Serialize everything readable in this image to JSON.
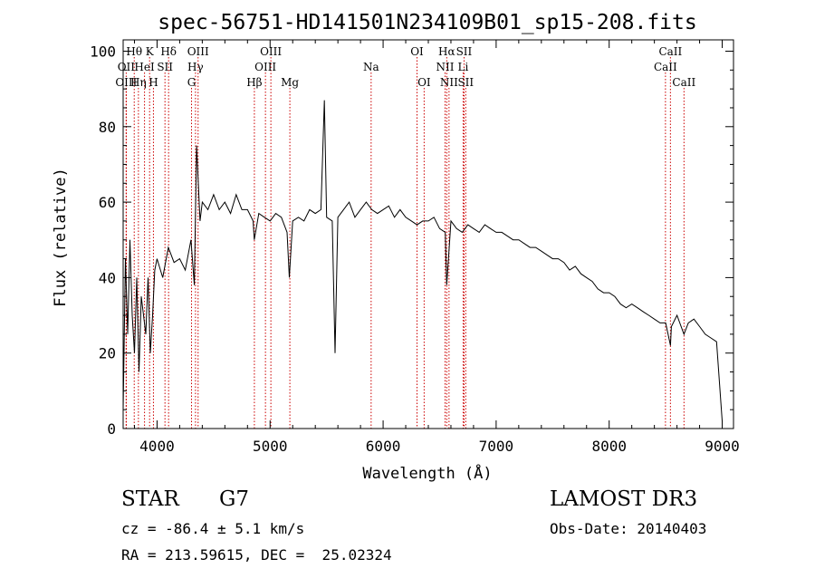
{
  "chart_data": {
    "type": "line",
    "title": "spec-56751-HD141501N234109B01_sp15-208.fits",
    "xlabel": "Wavelength (Å)",
    "ylabel": "Flux (relative)",
    "xlim": [
      3700,
      9100
    ],
    "ylim": [
      0,
      103
    ],
    "xticks": [
      4000,
      5000,
      6000,
      7000,
      8000,
      9000
    ],
    "xtick_labels": [
      "4000",
      "5000",
      "6000",
      "7000",
      "8000",
      "9000"
    ],
    "yticks": [
      0,
      20,
      40,
      60,
      80,
      100
    ],
    "ytick_labels": [
      "0",
      "20",
      "40",
      "60",
      "80",
      "100"
    ],
    "series": [
      {
        "name": "Spectrum",
        "x": [
          3700,
          3720,
          3740,
          3760,
          3780,
          3800,
          3820,
          3840,
          3860,
          3880,
          3900,
          3920,
          3940,
          3960,
          3980,
          4000,
          4050,
          4100,
          4150,
          4200,
          4250,
          4300,
          4330,
          4350,
          4380,
          4400,
          4450,
          4500,
          4550,
          4600,
          4650,
          4700,
          4750,
          4800,
          4850,
          4860,
          4900,
          4950,
          5000,
          5050,
          5100,
          5150,
          5170,
          5200,
          5250,
          5300,
          5350,
          5400,
          5450,
          5480,
          5500,
          5550,
          5575,
          5600,
          5650,
          5700,
          5750,
          5800,
          5850,
          5900,
          5950,
          6000,
          6050,
          6100,
          6150,
          6200,
          6250,
          6300,
          6350,
          6400,
          6450,
          6500,
          6550,
          6563,
          6600,
          6650,
          6700,
          6750,
          6800,
          6850,
          6900,
          6950,
          7000,
          7050,
          7100,
          7150,
          7200,
          7250,
          7300,
          7350,
          7400,
          7450,
          7500,
          7550,
          7600,
          7650,
          7700,
          7750,
          7800,
          7850,
          7900,
          7950,
          8000,
          8050,
          8100,
          8150,
          8200,
          8250,
          8300,
          8350,
          8400,
          8450,
          8500,
          8542,
          8550,
          8600,
          8662,
          8700,
          8750,
          8800,
          8850,
          8900,
          8950,
          9000
        ],
        "values": [
          5,
          45,
          25,
          50,
          30,
          20,
          40,
          15,
          35,
          30,
          25,
          40,
          20,
          30,
          42,
          45,
          40,
          48,
          44,
          45,
          42,
          50,
          38,
          75,
          55,
          60,
          58,
          62,
          58,
          60,
          57,
          62,
          58,
          58,
          55,
          50,
          57,
          56,
          55,
          57,
          56,
          52,
          40,
          55,
          56,
          55,
          58,
          57,
          58,
          87,
          56,
          55,
          20,
          56,
          58,
          60,
          56,
          58,
          60,
          58,
          57,
          58,
          59,
          56,
          58,
          56,
          55,
          54,
          55,
          55,
          56,
          53,
          52,
          38,
          55,
          53,
          52,
          54,
          53,
          52,
          54,
          53,
          52,
          52,
          51,
          50,
          50,
          49,
          48,
          48,
          47,
          46,
          45,
          45,
          44,
          42,
          43,
          41,
          40,
          39,
          37,
          36,
          36,
          35,
          33,
          32,
          33,
          32,
          31,
          30,
          29,
          28,
          28,
          22,
          27,
          30,
          25,
          28,
          29,
          27,
          25,
          24,
          23,
          2
        ]
      }
    ],
    "line_labels": [
      {
        "name": "OII",
        "x": 3727,
        "row": 1
      },
      {
        "name": "OIII",
        "x": 3727,
        "row": 2
      },
      {
        "name": "Hθ",
        "x": 3798,
        "row": 0
      },
      {
        "name": "Hη",
        "x": 3835,
        "row": 2
      },
      {
        "name": "HeI",
        "x": 3889,
        "row": 1
      },
      {
        "name": "K",
        "x": 3934,
        "row": 0
      },
      {
        "name": "H",
        "x": 3968,
        "row": 2
      },
      {
        "name": "SII",
        "x": 4070,
        "row": 1
      },
      {
        "name": "Hδ",
        "x": 4102,
        "row": 0
      },
      {
        "name": "G",
        "x": 4305,
        "row": 2
      },
      {
        "name": "Hγ",
        "x": 4340,
        "row": 1
      },
      {
        "name": "OIII",
        "x": 4363,
        "row": 0
      },
      {
        "name": "Hβ",
        "x": 4861,
        "row": 2
      },
      {
        "name": "OIII",
        "x": 4959,
        "row": 1
      },
      {
        "name": "OIII",
        "x": 5007,
        "row": 0
      },
      {
        "name": "Mg",
        "x": 5175,
        "row": 2
      },
      {
        "name": "Na",
        "x": 5894,
        "row": 1
      },
      {
        "name": "OI",
        "x": 6300,
        "row": 0
      },
      {
        "name": "OI",
        "x": 6363,
        "row": 2
      },
      {
        "name": "NII",
        "x": 6548,
        "row": 1
      },
      {
        "name": "Hα",
        "x": 6563,
        "row": 0
      },
      {
        "name": "NII",
        "x": 6583,
        "row": 2
      },
      {
        "name": "Li",
        "x": 6708,
        "row": 1
      },
      {
        "name": "SII",
        "x": 6716,
        "row": 0
      },
      {
        "name": "SII",
        "x": 6731,
        "row": 2
      },
      {
        "name": "CaII",
        "x": 8498,
        "row": 1
      },
      {
        "name": "CaII",
        "x": 8542,
        "row": 0
      },
      {
        "name": "CaII",
        "x": 8662,
        "row": 2
      }
    ]
  },
  "info": {
    "class_label": "STAR",
    "subclass": "G7",
    "survey": "LAMOST DR3",
    "redshift_text": "cz = -86.4 ± 5.1 km/s",
    "obs_date_text": "Obs-Date: 20140403",
    "coords_text": "RA = 213.59615, DEC =  25.02324"
  }
}
